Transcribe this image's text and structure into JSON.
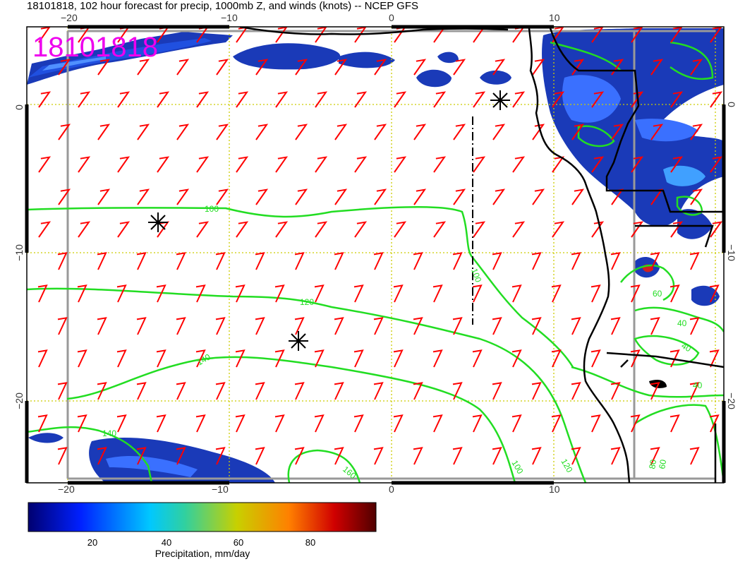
{
  "header": {
    "title": "18101818, 102 hour forecast for precip, 1000mb Z, and winds (knots) -- NCEP GFS",
    "datestamp": "18101818"
  },
  "axes": {
    "top_ticks": [
      "−20",
      "−10",
      "0",
      "10"
    ],
    "bottom_ticks": [
      "−20",
      "−10",
      "0",
      "10"
    ],
    "left_ticks": [
      "0",
      "−10",
      "−20"
    ],
    "right_ticks": [
      "0",
      "−10",
      "−20"
    ]
  },
  "contours": {
    "labels": [
      "100",
      "100",
      "120",
      "140",
      "140",
      "160",
      "120",
      "100",
      "40",
      "40",
      "40",
      "60",
      "80",
      "60"
    ]
  },
  "colorbar": {
    "ticks": [
      "20",
      "40",
      "60",
      "80"
    ],
    "title": "Precipitation, mm/day",
    "colors": [
      "#000080",
      "#0000ff",
      "#00c8ff",
      "#20d0b0",
      "#c8d000",
      "#ff8000",
      "#d00000",
      "#600000"
    ]
  },
  "colors": {
    "barb": "#ff0000",
    "contour": "#22dd22",
    "coast": "#000000",
    "grid": "#cccc00",
    "precip_high": "#1030c0",
    "stamp": "#ee00ee"
  },
  "markers": [
    "low-pressure-asterisk",
    "low-pressure-asterisk",
    "low-pressure-asterisk"
  ]
}
